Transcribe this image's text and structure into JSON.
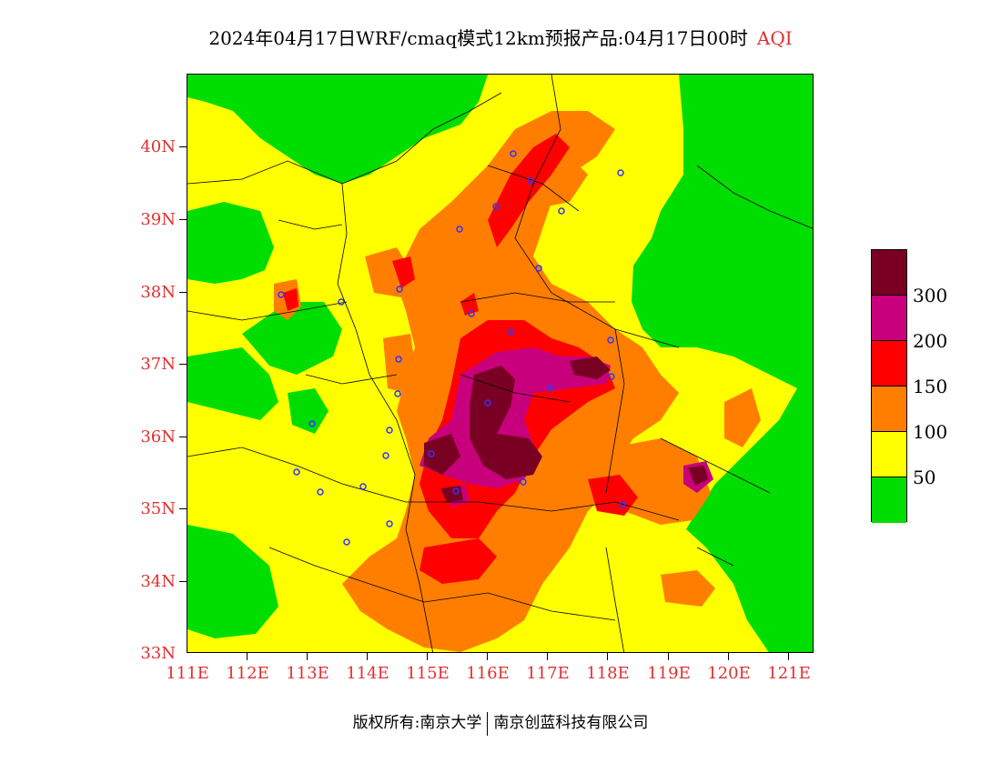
{
  "title": {
    "main": "2024年04月17日WRF/cmaq模式12km预报产品:04月17日00时",
    "variable": "AQI"
  },
  "map": {
    "lat_labels": [
      "40N",
      "39N",
      "38N",
      "37N",
      "36N",
      "35N",
      "34N",
      "33N"
    ],
    "lon_labels": [
      "111E",
      "112E",
      "113E",
      "114E",
      "115E",
      "116E",
      "117E",
      "118E",
      "119E",
      "120E",
      "121E"
    ],
    "colors": {
      "good": "#00dd00",
      "moderate": "#ffff00",
      "usg": "#ff7e00",
      "unhealthy": "#ff0000",
      "very_unhealthy": "#c8007c",
      "hazardous": "#7a0023",
      "boundary": "#000000",
      "station": "#3333ff",
      "axis_text": "#e03030"
    }
  },
  "legend": {
    "labels": [
      "300",
      "200",
      "150",
      "100",
      "50"
    ],
    "colors": [
      "#7a0023",
      "#c8007c",
      "#ff0000",
      "#ff7e00",
      "#ffff00",
      "#00dd00"
    ]
  },
  "footer": {
    "copyright": "版权所有:南京大学",
    "company": "南京创蓝科技有限公司"
  }
}
